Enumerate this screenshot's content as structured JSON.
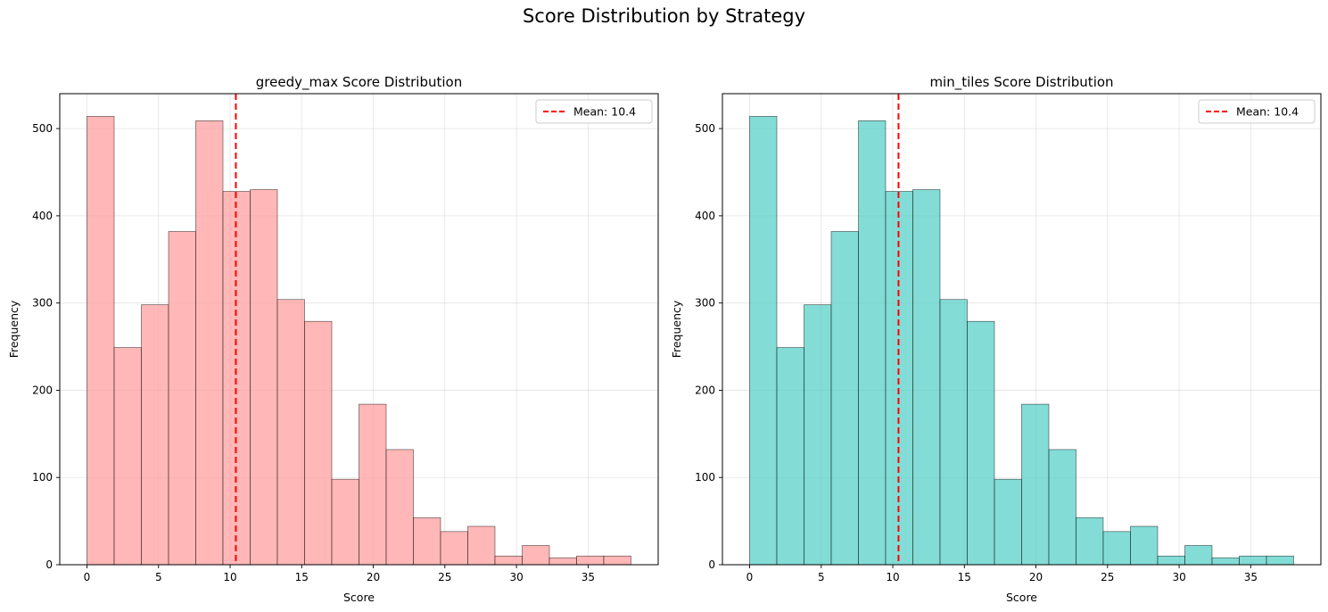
{
  "suptitle": "Score Distribution by Strategy",
  "chart_data": [
    {
      "type": "bar",
      "title": "greedy_max Score Distribution",
      "xlabel": "Score",
      "ylabel": "Frequency",
      "bin_edges": [
        0,
        1.9,
        3.8,
        5.7,
        7.6,
        9.5,
        11.4,
        13.3,
        15.2,
        17.1,
        19.0,
        20.9,
        22.8,
        24.7,
        26.6,
        28.5,
        30.4,
        32.3,
        34.2,
        36.1,
        38.0
      ],
      "values": [
        514,
        249,
        298,
        382,
        509,
        428,
        430,
        304,
        279,
        98,
        184,
        132,
        54,
        38,
        44,
        10,
        22,
        8,
        10,
        10
      ],
      "bar_color": "#ff9999",
      "mean": 10.4,
      "mean_label": "Mean: 10.4",
      "mean_color": "#ff0000",
      "xlim": [
        -1.9,
        39.9
      ],
      "ylim": [
        0,
        540
      ],
      "xticks": [
        0,
        5,
        10,
        15,
        20,
        25,
        30,
        35
      ],
      "yticks": [
        0,
        100,
        200,
        300,
        400,
        500
      ],
      "grid": true,
      "legend_position": "top-right"
    },
    {
      "type": "bar",
      "title": "min_tiles Score Distribution",
      "xlabel": "Score",
      "ylabel": "Frequency",
      "bin_edges": [
        0,
        1.9,
        3.8,
        5.7,
        7.6,
        9.5,
        11.4,
        13.3,
        15.2,
        17.1,
        19.0,
        20.9,
        22.8,
        24.7,
        26.6,
        28.5,
        30.4,
        32.3,
        34.2,
        36.1,
        38.0
      ],
      "values": [
        514,
        249,
        298,
        382,
        509,
        428,
        430,
        304,
        279,
        98,
        184,
        132,
        54,
        38,
        44,
        10,
        22,
        8,
        10,
        10
      ],
      "bar_color": "#4ecdc4",
      "mean": 10.4,
      "mean_label": "Mean: 10.4",
      "mean_color": "#ff0000",
      "xlim": [
        -1.9,
        39.9
      ],
      "ylim": [
        0,
        540
      ],
      "xticks": [
        0,
        5,
        10,
        15,
        20,
        25,
        30,
        35
      ],
      "yticks": [
        0,
        100,
        200,
        300,
        400,
        500
      ],
      "grid": true,
      "legend_position": "top-right"
    }
  ]
}
